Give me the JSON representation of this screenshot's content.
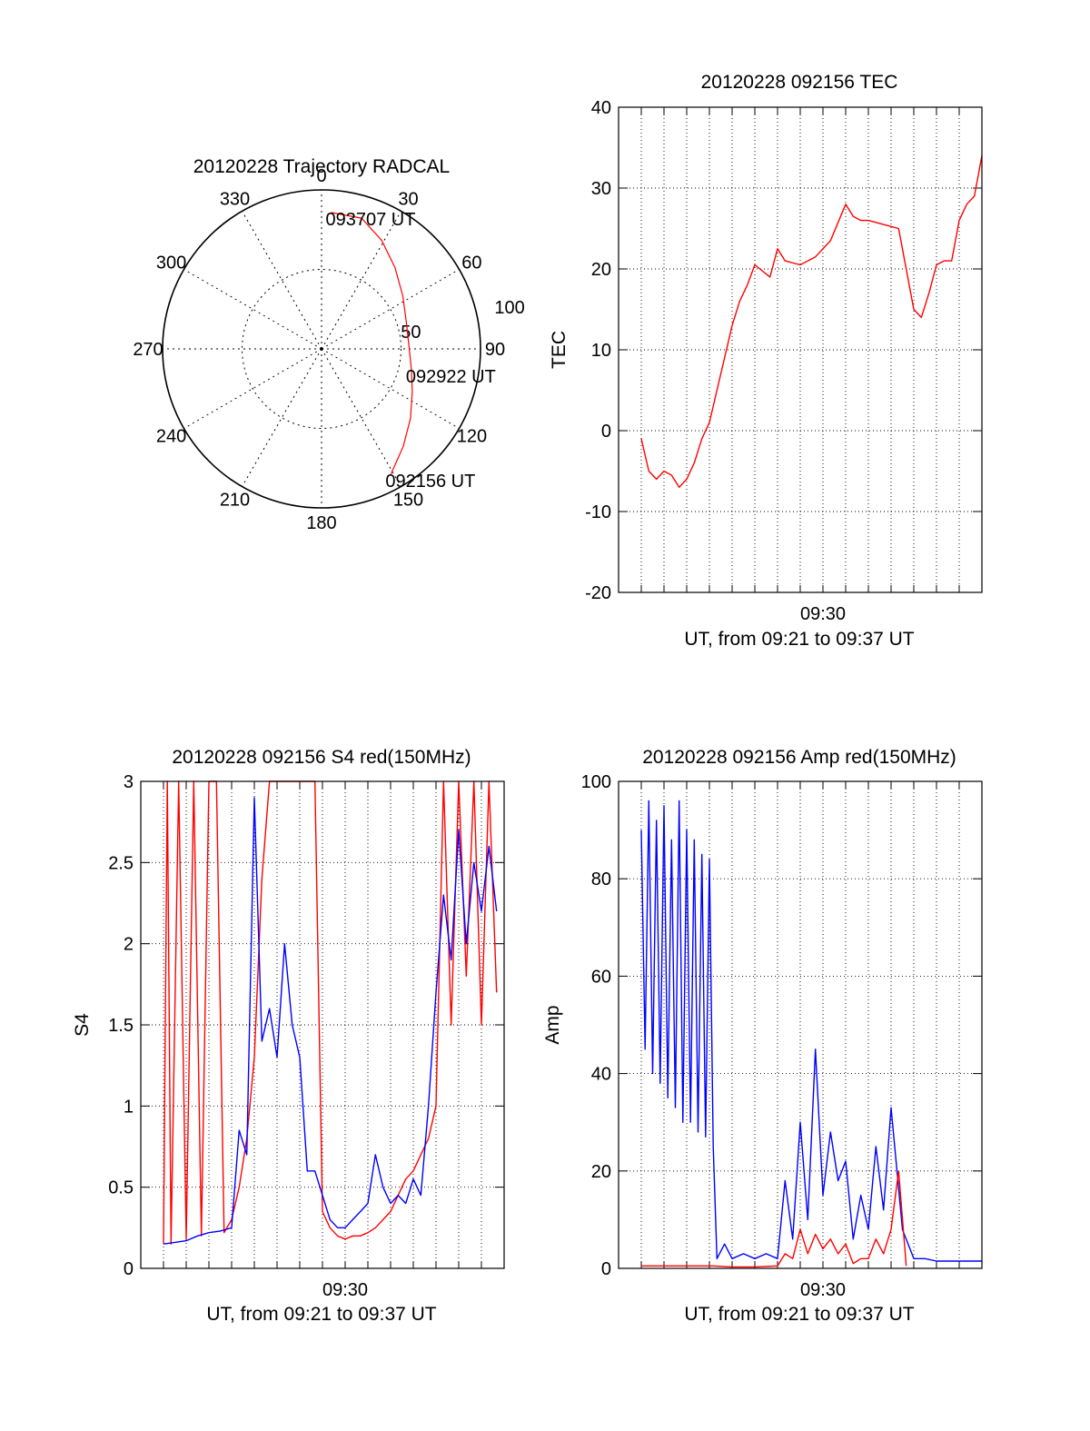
{
  "chart_data": [
    {
      "id": "polar",
      "type": "scatter",
      "title": "20120228 Trajectory RADCAL",
      "azimuth_labels": [
        "0",
        "30",
        "60",
        "90",
        "120",
        "150",
        "180",
        "210",
        "240",
        "270",
        "300",
        "330"
      ],
      "radial_labels": [
        "50",
        "100"
      ],
      "rlim": [
        0,
        100
      ],
      "grid": true,
      "colors": {
        "track": "#ff0000",
        "axes": "#000000"
      },
      "series": [
        {
          "points": [
            {
              "az": 151,
              "r": 90,
              "label": "092156 UT"
            },
            {
              "az": 140,
              "r": 80
            },
            {
              "az": 128,
              "r": 71
            },
            {
              "az": 115,
              "r": 63
            },
            {
              "az": 103,
              "r": 58,
              "label": "092922 UT"
            },
            {
              "az": 88,
              "r": 55
            },
            {
              "az": 72,
              "r": 56
            },
            {
              "az": 57,
              "r": 61
            },
            {
              "az": 42,
              "r": 69
            },
            {
              "az": 29,
              "r": 78
            },
            {
              "az": 17,
              "r": 86
            },
            {
              "az": 4,
              "r": 86,
              "label": "093707 UT"
            }
          ]
        }
      ]
    },
    {
      "id": "tec",
      "type": "line",
      "title": "20120228 092156 TEC",
      "xlabel": "UT, from 09:21 to 09:37 UT",
      "ylabel": "TEC",
      "xlim": [
        "09:21",
        "09:37"
      ],
      "ylim": [
        -20,
        40
      ],
      "yticks": [
        "-20",
        "-10",
        "0",
        "10",
        "20",
        "30",
        "40"
      ],
      "xtick_labels": [
        {
          "t": "09:30",
          "label": "09:30"
        }
      ],
      "grid": true,
      "colors": {
        "line": "#ff0000"
      },
      "series": [
        {
          "x": [
            "09:22:00",
            "09:22:20",
            "09:22:40",
            "09:23:00",
            "09:23:20",
            "09:23:40",
            "09:24:00",
            "09:24:20",
            "09:24:40",
            "09:25:00",
            "09:25:20",
            "09:25:40",
            "09:26:00",
            "09:26:20",
            "09:26:40",
            "09:27:00",
            "09:27:40",
            "09:28:00",
            "09:28:20",
            "09:29:00",
            "09:29:40",
            "09:30:20",
            "09:31:00",
            "09:31:20",
            "09:31:40",
            "09:32:00",
            "09:32:40",
            "09:33:20",
            "09:34:00",
            "09:34:20",
            "09:34:40",
            "09:35:00",
            "09:35:20",
            "09:35:40",
            "09:36:00",
            "09:36:20",
            "09:36:40",
            "09:37:00"
          ],
          "y": [
            -1,
            -5,
            -6,
            -5,
            -5.5,
            -7,
            -6,
            -4,
            -1,
            1,
            5,
            9,
            13,
            16,
            18,
            20.5,
            19,
            22.5,
            21,
            20.5,
            21.5,
            23.5,
            28,
            26.5,
            26,
            26,
            25.5,
            25,
            15,
            14,
            17,
            20.5,
            21,
            21,
            26,
            28,
            29,
            34
          ]
        }
      ]
    },
    {
      "id": "s4",
      "type": "line",
      "title": "20120228 092156 S4 red(150MHz)",
      "xlabel": "UT, from 09:21 to 09:37 UT",
      "ylabel": "S4",
      "xlim": [
        "09:21",
        "09:37"
      ],
      "ylim": [
        0,
        3
      ],
      "yticks": [
        "0",
        "0.5",
        "1",
        "1.5",
        "2",
        "2.5",
        "3"
      ],
      "xtick_labels": [
        {
          "t": "09:30",
          "label": "09:30"
        }
      ],
      "grid": true,
      "colors": {
        "red": "#ff0000",
        "blue": "#0000ff"
      },
      "series": [
        {
          "color": "red",
          "x": [
            "09:22:00",
            "09:22:10",
            "09:22:20",
            "09:22:40",
            "09:23:00",
            "09:23:20",
            "09:23:40",
            "09:24:00",
            "09:24:20",
            "09:24:40",
            "09:25:00",
            "09:25:20",
            "09:25:40",
            "09:26:00",
            "09:26:20",
            "09:26:40",
            "09:27:00",
            "09:27:20",
            "09:27:40",
            "09:28:00",
            "09:28:20",
            "09:28:40",
            "09:29:00",
            "09:29:20",
            "09:29:40",
            "09:30:00",
            "09:30:20",
            "09:30:40",
            "09:31:00",
            "09:31:20",
            "09:31:40",
            "09:32:00",
            "09:32:20",
            "09:32:40",
            "09:33:00",
            "09:33:20",
            "09:33:40",
            "09:34:00",
            "09:34:20",
            "09:34:40",
            "09:35:00",
            "09:35:20",
            "09:35:40",
            "09:36:00",
            "09:36:20",
            "09:36:40"
          ],
          "y": [
            0.15,
            3,
            0.15,
            3,
            0.18,
            3,
            0.2,
            3,
            3,
            0.22,
            0.3,
            0.5,
            0.8,
            1.3,
            2.4,
            3,
            3,
            3,
            3,
            3,
            3,
            3,
            0.35,
            0.25,
            0.2,
            0.18,
            0.2,
            0.2,
            0.22,
            0.25,
            0.3,
            0.35,
            0.45,
            0.55,
            0.6,
            0.7,
            0.8,
            1.0,
            3,
            1.5,
            3,
            1.8,
            3,
            1.5,
            3,
            1.7
          ]
        },
        {
          "color": "blue",
          "x": [
            "09:22:00",
            "09:22:30",
            "09:23:00",
            "09:23:30",
            "09:24:00",
            "09:24:30",
            "09:25:00",
            "09:25:20",
            "09:25:40",
            "09:26:00",
            "09:26:20",
            "09:26:40",
            "09:27:00",
            "09:27:20",
            "09:27:40",
            "09:28:00",
            "09:28:20",
            "09:28:40",
            "09:29:00",
            "09:29:20",
            "09:29:40",
            "09:30:00",
            "09:30:20",
            "09:30:40",
            "09:31:00",
            "09:31:20",
            "09:31:40",
            "09:32:00",
            "09:32:20",
            "09:32:40",
            "09:33:00",
            "09:33:20",
            "09:33:40",
            "09:34:00",
            "09:34:20",
            "09:34:40",
            "09:35:00",
            "09:35:20",
            "09:35:40",
            "09:36:00",
            "09:36:20",
            "09:36:40"
          ],
          "y": [
            0.15,
            0.16,
            0.17,
            0.2,
            0.22,
            0.23,
            0.25,
            0.85,
            0.7,
            2.9,
            1.4,
            1.6,
            1.3,
            2.0,
            1.5,
            1.3,
            0.6,
            0.6,
            0.45,
            0.3,
            0.25,
            0.25,
            0.3,
            0.35,
            0.4,
            0.7,
            0.5,
            0.4,
            0.45,
            0.4,
            0.55,
            0.45,
            1.0,
            1.7,
            2.3,
            1.9,
            2.7,
            2.0,
            2.5,
            2.2,
            2.6,
            2.2
          ]
        }
      ]
    },
    {
      "id": "amp",
      "type": "line",
      "title": "20120228 092156 Amp red(150MHz)",
      "xlabel": "UT, from 09:21 to 09:37 UT",
      "ylabel": "Amp",
      "xlim": [
        "09:21",
        "09:37"
      ],
      "ylim": [
        0,
        100
      ],
      "yticks": [
        "0",
        "20",
        "40",
        "60",
        "80",
        "100"
      ],
      "xtick_labels": [
        {
          "t": "09:30",
          "label": "09:30"
        }
      ],
      "grid": true,
      "colors": {
        "red": "#ff0000",
        "blue": "#0000ff"
      },
      "series": [
        {
          "color": "blue",
          "x": [
            "09:22:00",
            "09:22:10",
            "09:22:20",
            "09:22:30",
            "09:22:40",
            "09:22:50",
            "09:23:00",
            "09:23:10",
            "09:23:20",
            "09:23:30",
            "09:23:40",
            "09:23:50",
            "09:24:00",
            "09:24:10",
            "09:24:20",
            "09:24:30",
            "09:24:40",
            "09:24:50",
            "09:25:00",
            "09:25:10",
            "09:25:20",
            "09:25:40",
            "09:26:00",
            "09:26:30",
            "09:27:00",
            "09:27:30",
            "09:28:00",
            "09:28:20",
            "09:28:40",
            "09:29:00",
            "09:29:20",
            "09:29:40",
            "09:30:00",
            "09:30:20",
            "09:30:40",
            "09:31:00",
            "09:31:20",
            "09:31:40",
            "09:32:00",
            "09:32:20",
            "09:32:40",
            "09:33:00",
            "09:33:30",
            "09:34:00",
            "09:34:30",
            "09:35:00",
            "09:35:30",
            "09:36:00",
            "09:36:30",
            "09:37:00"
          ],
          "y": [
            90,
            45,
            96,
            40,
            92,
            38,
            95,
            35,
            88,
            33,
            96,
            30,
            90,
            30,
            88,
            28,
            85,
            27,
            84,
            25,
            2,
            5,
            2,
            3,
            2,
            3,
            2,
            18,
            6,
            30,
            10,
            45,
            15,
            28,
            18,
            22,
            6,
            15,
            8,
            25,
            12,
            33,
            8,
            2,
            2,
            1.5,
            1.5,
            1.5,
            1.5,
            1.5
          ]
        },
        {
          "color": "red",
          "x": [
            "09:22:00",
            "09:23:00",
            "09:24:00",
            "09:25:00",
            "09:25:10",
            "09:26:00",
            "09:27:00",
            "09:28:00",
            "09:28:20",
            "09:28:40",
            "09:29:00",
            "09:29:20",
            "09:29:40",
            "09:30:00",
            "09:30:20",
            "09:30:40",
            "09:31:00",
            "09:31:20",
            "09:31:40",
            "09:32:00",
            "09:32:20",
            "09:32:40",
            "09:33:00",
            "09:33:20",
            "09:33:40"
          ],
          "y": [
            0.5,
            0.5,
            0.5,
            0.5,
            0.5,
            0.3,
            0.3,
            0.5,
            3,
            2,
            8,
            3,
            7,
            4,
            6,
            3,
            5,
            1,
            2,
            2,
            6,
            3,
            8,
            20,
            0.5
          ]
        }
      ]
    }
  ]
}
